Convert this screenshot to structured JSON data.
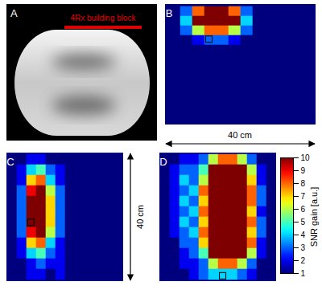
{
  "image_panel": {
    "title": "A",
    "annotation": "4Rx building block"
  },
  "chart_data": [
    {
      "type": "heatmap",
      "title": "B",
      "cells": [
        [
          1,
          3,
          8,
          10,
          10,
          8,
          3,
          1,
          1,
          1,
          1,
          1
        ],
        [
          1,
          4,
          10,
          10,
          10,
          10,
          4,
          1,
          1,
          1,
          1,
          1
        ],
        [
          1,
          3,
          6,
          8,
          8,
          6,
          3,
          1,
          1,
          1,
          1,
          1
        ],
        [
          1,
          1,
          2,
          3,
          3,
          2,
          1,
          1,
          1,
          1,
          1,
          1
        ],
        [
          1,
          1,
          1,
          1,
          1,
          1,
          1,
          1,
          1,
          1,
          1,
          1
        ],
        [
          1,
          1,
          1,
          1,
          1,
          1,
          1,
          1,
          1,
          1,
          1,
          1
        ],
        [
          1,
          1,
          1,
          1,
          1,
          1,
          1,
          1,
          1,
          1,
          1,
          1
        ],
        [
          1,
          1,
          1,
          1,
          1,
          1,
          1,
          1,
          1,
          1,
          1,
          1
        ],
        [
          1,
          1,
          1,
          1,
          1,
          1,
          1,
          1,
          1,
          1,
          1,
          1
        ],
        [
          1,
          1,
          1,
          1,
          1,
          1,
          1,
          1,
          1,
          1,
          1,
          1
        ],
        [
          1,
          1,
          1,
          1,
          1,
          1,
          1,
          1,
          1,
          1,
          1,
          1
        ],
        [
          1,
          1,
          1,
          1,
          1,
          1,
          1,
          1,
          1,
          1,
          1,
          1
        ]
      ]
    },
    {
      "type": "heatmap",
      "title": "C",
      "cells": [
        [
          1,
          1,
          2,
          2,
          1,
          1,
          1,
          1,
          1,
          1,
          1,
          1
        ],
        [
          1,
          2,
          4,
          5,
          3,
          2,
          1,
          1,
          1,
          1,
          1,
          1
        ],
        [
          1,
          2,
          7,
          8,
          4,
          2,
          1,
          1,
          1,
          1,
          1,
          1
        ],
        [
          1,
          3,
          9,
          10,
          6,
          3,
          1,
          1,
          1,
          1,
          1,
          1
        ],
        [
          1,
          3,
          10,
          10,
          7,
          3,
          1,
          1,
          1,
          1,
          1,
          1
        ],
        [
          1,
          3,
          10,
          10,
          7,
          3,
          1,
          1,
          1,
          1,
          1,
          1
        ],
        [
          1,
          3,
          10,
          10,
          7,
          3,
          1,
          1,
          1,
          1,
          1,
          1
        ],
        [
          1,
          3,
          9,
          10,
          6,
          3,
          1,
          1,
          1,
          1,
          1,
          1
        ],
        [
          1,
          2,
          7,
          8,
          4,
          2,
          1,
          1,
          1,
          1,
          1,
          1
        ],
        [
          1,
          2,
          4,
          5,
          3,
          2,
          1,
          1,
          1,
          1,
          1,
          1
        ],
        [
          1,
          1,
          2,
          3,
          2,
          2,
          1,
          1,
          1,
          1,
          1,
          1
        ],
        [
          1,
          1,
          2,
          2,
          1,
          2,
          1,
          1,
          1,
          1,
          1,
          1
        ]
      ]
    },
    {
      "type": "heatmap",
      "title": "D",
      "cells": [
        [
          1,
          1,
          2,
          2,
          3,
          6,
          8,
          8,
          6,
          3,
          1,
          1
        ],
        [
          1,
          2,
          3,
          3,
          5,
          10,
          10,
          10,
          10,
          6,
          2,
          1
        ],
        [
          1,
          2,
          4,
          3,
          6,
          10,
          10,
          10,
          10,
          7,
          2,
          1
        ],
        [
          1,
          2,
          3,
          4,
          8,
          10,
          10,
          10,
          10,
          8,
          3,
          1
        ],
        [
          1,
          2,
          4,
          3,
          7,
          10,
          10,
          10,
          10,
          8,
          3,
          1
        ],
        [
          1,
          2,
          3,
          4,
          8,
          10,
          10,
          10,
          10,
          7,
          2,
          1
        ],
        [
          1,
          2,
          4,
          3,
          7,
          10,
          10,
          10,
          10,
          8,
          3,
          1
        ],
        [
          1,
          2,
          3,
          4,
          8,
          10,
          10,
          10,
          10,
          7,
          3,
          1
        ],
        [
          1,
          1,
          3,
          3,
          7,
          10,
          10,
          10,
          10,
          8,
          2,
          1
        ],
        [
          1,
          1,
          2,
          3,
          5,
          10,
          10,
          10,
          10,
          6,
          2,
          1
        ],
        [
          1,
          1,
          2,
          2,
          3,
          6,
          8,
          8,
          6,
          3,
          1,
          1
        ],
        [
          1,
          1,
          1,
          2,
          3,
          4,
          4,
          4,
          3,
          2,
          1,
          1
        ]
      ]
    }
  ],
  "color_bar": {
    "label": "SNR gain [a.u.]",
    "range": [
      1,
      10
    ],
    "ticks": [
      1,
      2,
      3,
      4,
      5,
      6,
      7,
      8,
      9,
      10
    ]
  },
  "scale_bars": [
    {
      "text": "40 cm",
      "orientation": "horizontal"
    },
    {
      "text": "40 cm",
      "orientation": "vertical"
    }
  ]
}
